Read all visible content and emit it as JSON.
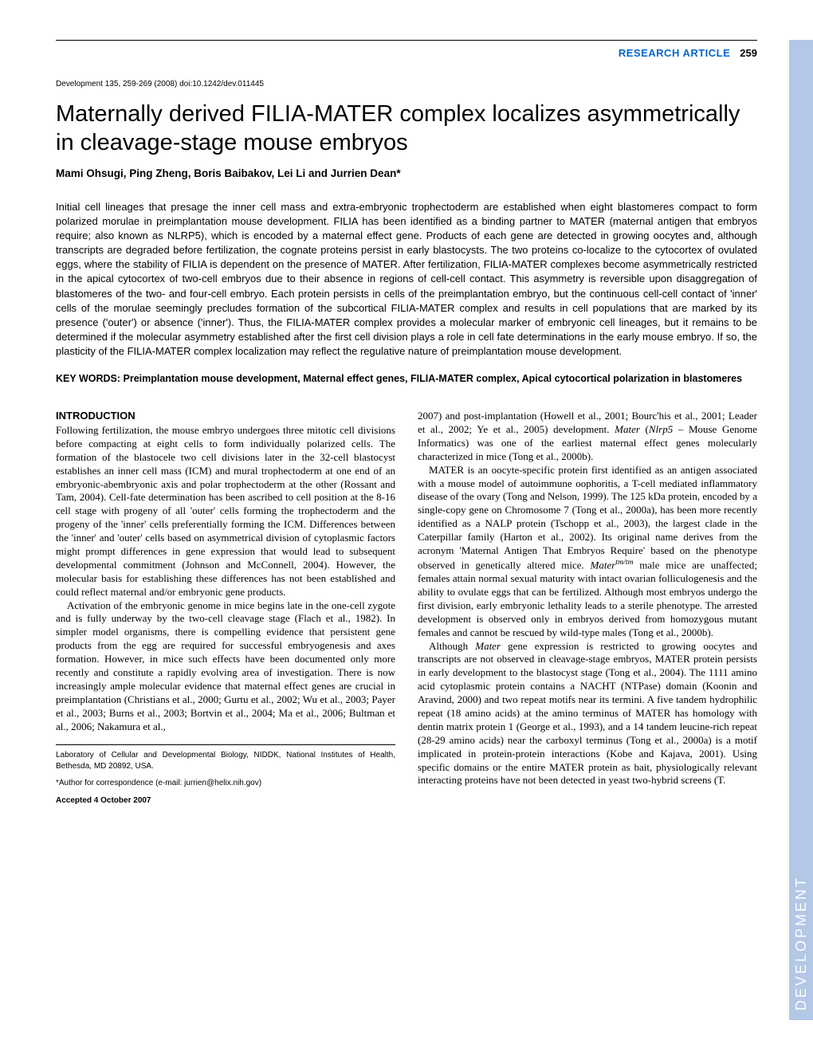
{
  "header": {
    "article_type": "RESEARCH ARTICLE",
    "page_number": "259"
  },
  "doi": "Development 135, 259-269 (2008) doi:10.1242/dev.011445",
  "title": "Maternally derived FILIA-MATER complex localizes asymmetrically in cleavage-stage mouse embryos",
  "authors": "Mami Ohsugi, Ping Zheng, Boris Baibakov, Lei Li and Jurrien Dean*",
  "abstract": "Initial cell lineages that presage the inner cell mass and extra-embryonic trophectoderm are established when eight blastomeres compact to form polarized morulae in preimplantation mouse development. FILIA has been identified as a binding partner to MATER (maternal antigen that embryos require; also known as NLRP5), which is encoded by a maternal effect gene. Products of each gene are detected in growing oocytes and, although transcripts are degraded before fertilization, the cognate proteins persist in early blastocysts. The two proteins co-localize to the cytocortex of ovulated eggs, where the stability of FILIA is dependent on the presence of MATER. After fertilization, FILIA-MATER complexes become asymmetrically restricted in the apical cytocortex of two-cell embryos due to their absence in regions of cell-cell contact. This asymmetry is reversible upon disaggregation of blastomeres of the two- and four-cell embryo. Each protein persists in cells of the preimplantation embryo, but the continuous cell-cell contact of 'inner' cells of the morulae seemingly precludes formation of the subcortical FILIA-MATER complex and results in cell populations that are marked by its presence ('outer') or absence ('inner'). Thus, the FILIA-MATER complex provides a molecular marker of embryonic cell lineages, but it remains to be determined if the molecular asymmetry established after the first cell division plays a role in cell fate determinations in the early mouse embryo. If so, the plasticity of the FILIA-MATER complex localization may reflect the regulative nature of preimplantation mouse development.",
  "keywords": "KEY WORDS: Preimplantation mouse development, Maternal effect genes, FILIA-MATER complex, Apical cytocortical polarization in blastomeres",
  "intro_heading": "INTRODUCTION",
  "col1_p1": "Following fertilization, the mouse embryo undergoes three mitotic cell divisions before compacting at eight cells to form individually polarized cells. The formation of the blastocele two cell divisions later in the 32-cell blastocyst establishes an inner cell mass (ICM) and mural trophectoderm at one end of an embryonic-abembryonic axis and polar trophectoderm at the other (Rossant and Tam, 2004). Cell-fate determination has been ascribed to cell position at the 8-16 cell stage with progeny of all 'outer' cells forming the trophectoderm and the progeny of the 'inner' cells preferentially forming the ICM. Differences between the 'inner' and 'outer' cells based on asymmetrical division of cytoplasmic factors might prompt differences in gene expression that would lead to subsequent developmental commitment (Johnson and McConnell, 2004). However, the molecular basis for establishing these differences has not been established and could reflect maternal and/or embryonic gene products.",
  "col1_p2": "Activation of the embryonic genome in mice begins late in the one-cell zygote and is fully underway by the two-cell cleavage stage (Flach et al., 1982). In simpler model organisms, there is compelling evidence that persistent gene products from the egg are required for successful embryogenesis and axes formation. However, in mice such effects have been documented only more recently and constitute a rapidly evolving area of investigation. There is now increasingly ample molecular evidence that maternal effect genes are crucial in preimplantation (Christians et al., 2000; Gurtu et al., 2002; Wu et al., 2003; Payer et al., 2003; Burns et al., 2003; Bortvin et al., 2004; Ma et al., 2006; Bultman et al., 2006; Nakamura et al.,",
  "footnote_affiliation": "Laboratory of Cellular and Developmental Biology, NIDDK, National Institutes of Health, Bethesda, MD 20892, USA.",
  "footnote_corr": "*Author for correspondence (e-mail: jurrien@helix.nih.gov)",
  "footnote_accepted": "Accepted 4 October 2007",
  "col2_p1a": "2007) and post-implantation (Howell et al., 2001; Bourc'his et al., 2001; Leader et al., 2002; Ye et al., 2005) development. ",
  "col2_p1b": "Mater",
  "col2_p1c": " (",
  "col2_p1d": "Nlrp5",
  "col2_p1e": " – Mouse Genome Informatics) was one of the earliest maternal effect genes molecularly characterized in mice (Tong et al., 2000b).",
  "col2_p2a": "MATER is an oocyte-specific protein first identified as an antigen associated with a mouse model of autoimmune oophoritis, a T-cell mediated inflammatory disease of the ovary (Tong and Nelson, 1999). The 125 kDa protein, encoded by a single-copy gene on Chromosome 7 (Tong et al., 2000a), has been more recently identified as a NALP protein (Tschopp et al., 2003), the largest clade in the Caterpillar family (Harton et al., 2002). Its original name derives from the acronym 'Maternal Antigen That Embryos Require' based on the phenotype observed in genetically altered mice. ",
  "col2_p2b": "Mater",
  "col2_p2c": "tm/tm",
  "col2_p2d": " male mice are unaffected; females attain normal sexual maturity with intact ovarian folliculogenesis and the ability to ovulate eggs that can be fertilized. Although most embryos undergo the first division, early embryonic lethality leads to a sterile phenotype. The arrested development is observed only in embryos derived from homozygous mutant females and cannot be rescued by wild-type males (Tong et al., 2000b).",
  "col2_p3a": "Although ",
  "col2_p3b": "Mater",
  "col2_p3c": " gene expression is restricted to growing oocytes and transcripts are not observed in cleavage-stage embryos, MATER protein persists in early development to the blastocyst stage (Tong et al., 2004). The 1111 amino acid cytoplasmic protein contains a NACHT (NTPase) domain (Koonin and Aravind, 2000) and two repeat motifs near its termini. A five tandem hydrophilic repeat (18 amino acids) at the amino terminus of MATER has homology with dentin matrix protein 1 (George et al., 1993), and a 14 tandem leucine-rich repeat (28-29 amino acids) near the carboxyl terminus (Tong et al., 2000a) is a motif implicated in protein-protein interactions (Kobe and Kajava, 2001). Using specific domains or the entire MATER protein as bait, physiologically relevant interacting proteins have not been detected in yeast two-hybrid screens (T.",
  "side_tab": "DEVELOPMENT",
  "colors": {
    "link_blue": "#0066cc",
    "side_tab_bg": "#b3c7e6",
    "side_tab_text": "#ffffff"
  }
}
